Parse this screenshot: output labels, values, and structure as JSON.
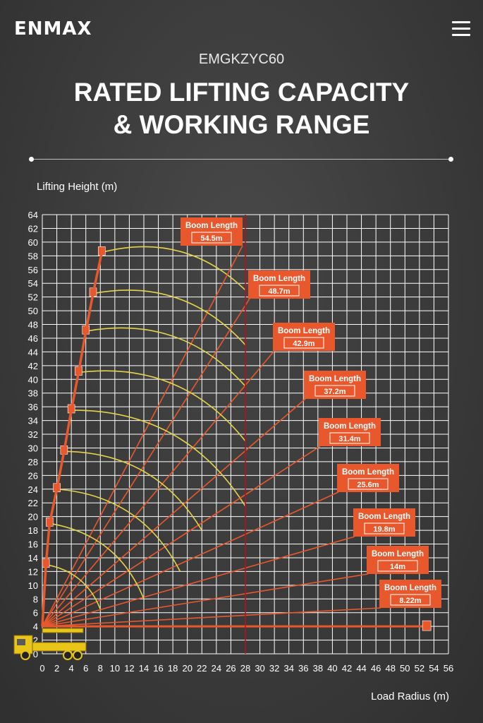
{
  "header": {
    "logo_text": "ENMAX",
    "menu_icon": "hamburger-menu-icon",
    "model": "EMGKZYC60",
    "title_line1": "RATED LIFTING CAPACITY",
    "title_line2": "& WORKING RANGE"
  },
  "colors": {
    "boom": "#e8582c",
    "radius_arc": "#e6d34a",
    "grid": "#ffffff",
    "limit_line": "#b5121b",
    "callout_bg": "#e8582c"
  },
  "chart_data": {
    "type": "line",
    "ylabel": "Lifting Height (m)",
    "xlabel": "Load Radius (m)",
    "xlim": [
      0,
      56
    ],
    "ylim": [
      0,
      64
    ],
    "x_ticks": [
      0,
      2,
      4,
      6,
      8,
      10,
      12,
      14,
      16,
      18,
      20,
      22,
      24,
      26,
      28,
      30,
      32,
      34,
      36,
      38,
      40,
      42,
      44,
      46,
      48,
      50,
      52,
      54,
      56
    ],
    "y_ticks": [
      0,
      2,
      4,
      6,
      8,
      10,
      12,
      14,
      16,
      18,
      20,
      22,
      24,
      26,
      28,
      30,
      32,
      34,
      36,
      38,
      40,
      42,
      44,
      46,
      48,
      50,
      52,
      54,
      56,
      58,
      60,
      62,
      64
    ],
    "grid": true,
    "max_radius_line": 28,
    "boom_pivot": {
      "x": 0,
      "y": 4
    },
    "boom_label": "Boom Length",
    "booms": [
      {
        "length": "54.5m",
        "tip": {
          "x": 8.2,
          "y": 58.5
        },
        "arc_end": {
          "x": 28,
          "y": 53
        }
      },
      {
        "length": "48.7m",
        "tip": {
          "x": 7.0,
          "y": 52.5
        },
        "arc_end": {
          "x": 28,
          "y": 45
        }
      },
      {
        "length": "42.9m",
        "tip": {
          "x": 6.0,
          "y": 47
        },
        "arc_end": {
          "x": 28,
          "y": 39
        }
      },
      {
        "length": "37.2m",
        "tip": {
          "x": 5.0,
          "y": 41
        },
        "arc_end": {
          "x": 28,
          "y": 31
        }
      },
      {
        "length": "31.4m",
        "tip": {
          "x": 4.0,
          "y": 35.5
        },
        "arc_end": {
          "x": 28,
          "y": 21.5
        }
      },
      {
        "length": "25.6m",
        "tip": {
          "x": 3.0,
          "y": 29.5
        },
        "arc_end": {
          "x": 22,
          "y": 18
        }
      },
      {
        "length": "19.8m",
        "tip": {
          "x": 2.0,
          "y": 24
        },
        "arc_end": {
          "x": 19,
          "y": 12
        }
      },
      {
        "length": "14m",
        "tip": {
          "x": 1.0,
          "y": 19
        },
        "arc_end": {
          "x": 14,
          "y": 8
        }
      },
      {
        "length": "8.22m",
        "tip": {
          "x": 0.5,
          "y": 13
        },
        "arc_end": {
          "x": 8,
          "y": 6.5
        }
      }
    ],
    "horizontal_boom": {
      "x": 53,
      "y": 4
    }
  }
}
